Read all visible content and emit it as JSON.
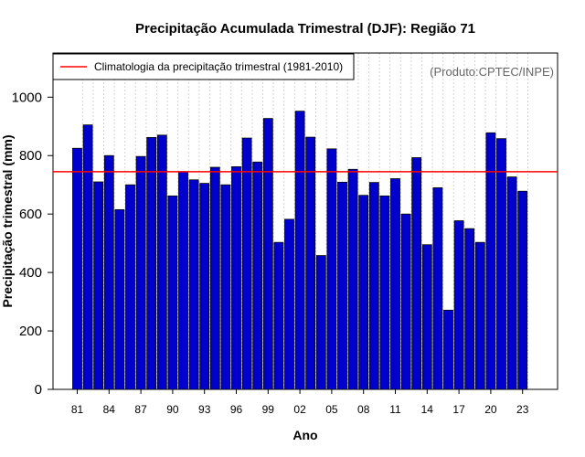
{
  "chart_data": {
    "type": "bar",
    "title": "Precipitação Acumulada Trimestral (DJF): Região 71",
    "xlabel": "Ano",
    "ylabel": "Precipitação trimestral (mm)",
    "ylim": [
      0,
      1150
    ],
    "yticks": [
      0,
      200,
      400,
      600,
      800,
      1000
    ],
    "categories": [
      "81",
      "82",
      "83",
      "84",
      "85",
      "86",
      "87",
      "88",
      "89",
      "90",
      "91",
      "92",
      "93",
      "94",
      "95",
      "96",
      "97",
      "98",
      "99",
      "00",
      "01",
      "02",
      "03",
      "04",
      "05",
      "06",
      "07",
      "08",
      "09",
      "10",
      "11",
      "12",
      "13",
      "14",
      "15",
      "16",
      "17",
      "18",
      "19",
      "20",
      "21",
      "22",
      "23"
    ],
    "xtick_labels": [
      "81",
      "84",
      "87",
      "90",
      "93",
      "96",
      "99",
      "02",
      "05",
      "08",
      "11",
      "14",
      "17",
      "20",
      "23"
    ],
    "values": [
      825,
      905,
      710,
      800,
      615,
      700,
      797,
      862,
      870,
      662,
      745,
      717,
      705,
      760,
      700,
      762,
      860,
      778,
      927,
      503,
      582,
      952,
      863,
      458,
      823,
      709,
      753,
      664,
      708,
      662,
      721,
      600,
      793,
      495,
      690,
      271,
      577,
      550,
      503,
      878,
      858,
      727,
      678
    ],
    "climatology": 745,
    "legend_label": "Climatologia da precipitação trimestral (1981-2010)",
    "legend_position": "top-left",
    "credit": "(Produto:CPTEC/INPE)",
    "grid": "vertical-dotted",
    "colors": {
      "bar": "#0000cd",
      "bar_edge": "#000000",
      "climatology": "#ff0000",
      "grid": "#d3d3d3",
      "credit": "#666666"
    }
  }
}
